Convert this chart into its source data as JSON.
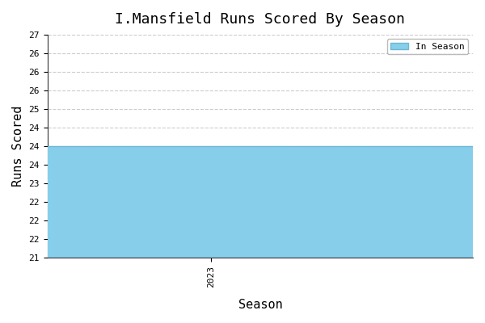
{
  "title": "I.Mansfield Runs Scored By Season",
  "xlabel": "Season",
  "ylabel": "Runs Scored",
  "seasons": [
    2023
  ],
  "values": [
    24
  ],
  "bar_color": "#87CEEB",
  "bar_edgecolor": "#6BB8D4",
  "ylim_min": 21,
  "ylim_max": 27,
  "ytick_step": 0.5,
  "legend_label": "In Season",
  "background_color": "#ffffff",
  "grid_color": "#cccccc",
  "title_fontsize": 13,
  "label_fontsize": 11,
  "bar_width": 0.5
}
